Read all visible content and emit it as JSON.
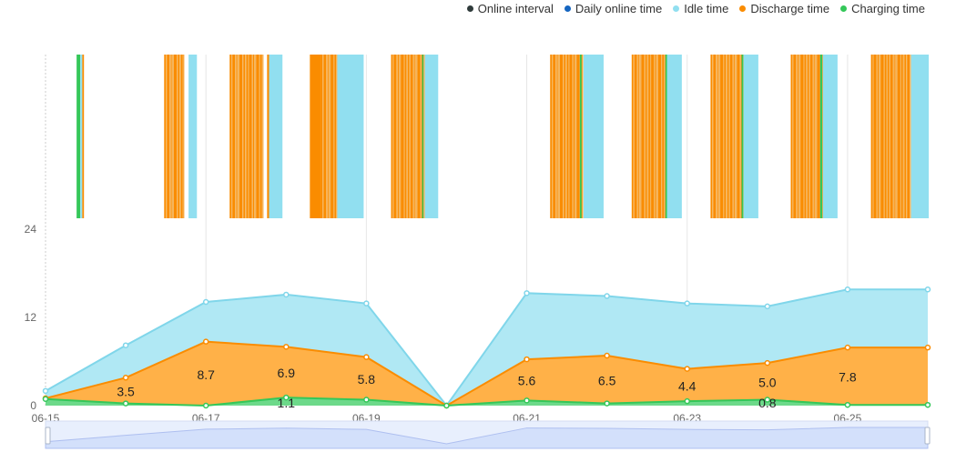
{
  "legend": [
    {
      "label": "Online interval",
      "color": "#2f3b3b"
    },
    {
      "label": "Daily online time",
      "color": "#1565c0"
    },
    {
      "label": "Idle time",
      "color": "#91dff0"
    },
    {
      "label": "Discharge time",
      "color": "#fa8c00"
    },
    {
      "label": "Charging time",
      "color": "#34c759"
    }
  ],
  "chart_data": {
    "type": "area",
    "stacked": true,
    "x": [
      "06-15",
      "06-16",
      "06-17",
      "06-18",
      "06-19",
      "06-20",
      "06-21",
      "06-22",
      "06-23",
      "06-24",
      "06-25",
      "06-26"
    ],
    "x_tick_labels": [
      "06-15",
      "06-17",
      "06-19",
      "06-21",
      "06-23",
      "06-25"
    ],
    "y_ticks": [
      "0",
      "12",
      "24"
    ],
    "ylim": [
      0,
      24
    ],
    "series": [
      {
        "name": "Charging time",
        "color": "#34c759",
        "values": [
          0.9,
          0.3,
          0,
          1.1,
          0.8,
          0,
          0.7,
          0.3,
          0.6,
          0.8,
          0.1,
          0.1
        ],
        "labels": [
          null,
          null,
          null,
          "1.1",
          null,
          null,
          null,
          null,
          null,
          "0.8",
          null,
          null
        ]
      },
      {
        "name": "Discharge time",
        "color": "#fa8c00",
        "values": [
          0.1,
          3.5,
          8.7,
          6.9,
          5.8,
          0,
          5.6,
          6.5,
          4.4,
          5.0,
          7.8,
          7.8
        ],
        "labels": [
          null,
          "3.5",
          "8.7",
          "6.9",
          "5.8",
          null,
          "5.6",
          "6.5",
          "4.4",
          "5.0",
          "7.8",
          null
        ]
      },
      {
        "name": "Idle time",
        "color": "#91dff0",
        "values": [
          1.0,
          4.4,
          5.4,
          7.1,
          7.3,
          0,
          9.0,
          8.1,
          8.9,
          7.7,
          7.9,
          7.9
        ],
        "labels": []
      }
    ],
    "online_intervals_hours_from_06_15": [
      [
        9.3,
        10.4,
        "charging"
      ],
      [
        10.4,
        11.0,
        "idle"
      ],
      [
        11.0,
        11.5,
        "discharge"
      ],
      [
        35.5,
        41.5,
        "mixed"
      ],
      [
        42.8,
        45.3,
        "idle"
      ],
      [
        55.1,
        65.2,
        "mixed"
      ],
      [
        66.3,
        66.9,
        "discharge"
      ],
      [
        66.9,
        70.9,
        "idle"
      ],
      [
        79.1,
        82.4,
        "discharge"
      ],
      [
        82.4,
        87.3,
        "mixed"
      ],
      [
        87.3,
        95.2,
        "idle"
      ],
      [
        103.4,
        113.5,
        "mixed"
      ],
      [
        112.7,
        113.1,
        "charging"
      ],
      [
        113.5,
        117.5,
        "idle"
      ],
      [
        151,
        160.9,
        "mixed"
      ],
      [
        159.9,
        160.4,
        "charging"
      ],
      [
        161,
        167,
        "idle"
      ],
      [
        175.4,
        186,
        "mixed"
      ],
      [
        185.5,
        186,
        "charging"
      ],
      [
        186,
        190.4,
        "idle"
      ],
      [
        199,
        208.9,
        "mixed"
      ],
      [
        208.3,
        208.8,
        "charging"
      ],
      [
        208.9,
        213.3,
        "idle"
      ],
      [
        223,
        232.6,
        "mixed"
      ],
      [
        231.8,
        232.4,
        "charging"
      ],
      [
        232.6,
        237,
        "idle"
      ],
      [
        247,
        259,
        "mixed"
      ],
      [
        259,
        264.3,
        "idle"
      ]
    ]
  }
}
